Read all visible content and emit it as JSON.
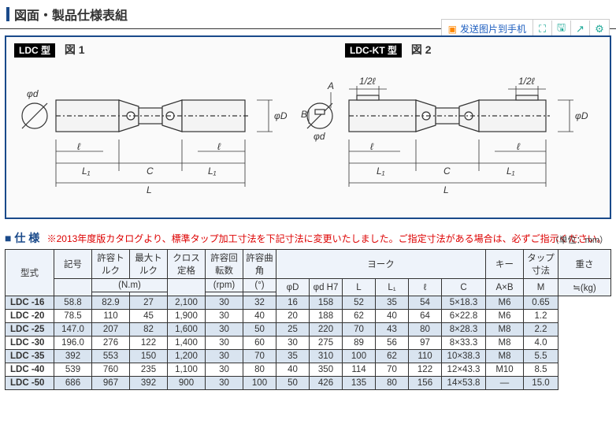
{
  "title": "図面・製品仕様表組",
  "toolbar": {
    "send_label": "发送图片到手机",
    "icons": [
      "expand-icon",
      "save-icon",
      "share-icon",
      "gear-icon"
    ]
  },
  "figure": {
    "left_badge": "LDC 型",
    "left_fig": "図 1",
    "right_badge": "LDC-KT 型",
    "right_fig": "図 2",
    "dims": {
      "phi_d": "φd",
      "phi_D": "φD",
      "L": "L",
      "L1": "L₁",
      "C": "C",
      "l": "ℓ",
      "A": "A",
      "B": "B",
      "half_l": "1/2ℓ"
    }
  },
  "spec": {
    "heading": "■ 仕 様",
    "note": "※2013年度版カタログより、標準タップ加工寸法を下記寸法に変更いたしました。ご指定寸法がある場合は、必ずご指示ください。",
    "unit": "（単位：mm）",
    "columns": {
      "model_head": "型式",
      "symbol": "記号",
      "allow_tq": "許容トルク",
      "max_tq": "最大トルク",
      "cross": "クロス定格",
      "rpm": "許容回転数",
      "angle": "許容曲角",
      "yoke": "ヨーク",
      "key": "キー",
      "tap": "タップ寸法",
      "weight": "重さ",
      "nm": "(N.m)",
      "rpm_u": "(rpm)",
      "deg": "(°)",
      "AxB": "A×B",
      "M": "M",
      "kg": "≒(kg)",
      "yoke_sub": [
        "φD",
        "φd H7",
        "L",
        "L₁",
        "ℓ",
        "C"
      ]
    },
    "rows": [
      {
        "model": "LDC -16",
        "tq": "58.8",
        "tqmax": "82.9",
        "cross": "27",
        "rpm": "2,100",
        "ang": "30",
        "y": [
          "32",
          "16",
          "158",
          "52",
          "35",
          "54"
        ],
        "k": "5×18.3",
        "m": "M6",
        "kg": "0.65"
      },
      {
        "model": "LDC -20",
        "tq": "78.5",
        "tqmax": "110",
        "cross": "45",
        "rpm": "1,900",
        "ang": "30",
        "y": [
          "40",
          "20",
          "188",
          "62",
          "40",
          "64"
        ],
        "k": "6×22.8",
        "m": "M6",
        "kg": "1.2"
      },
      {
        "model": "LDC -25",
        "tq": "147.0",
        "tqmax": "207",
        "cross": "82",
        "rpm": "1,600",
        "ang": "30",
        "y": [
          "50",
          "25",
          "220",
          "70",
          "43",
          "80"
        ],
        "k": "8×28.3",
        "m": "M8",
        "kg": "2.2"
      },
      {
        "model": "LDC -30",
        "tq": "196.0",
        "tqmax": "276",
        "cross": "122",
        "rpm": "1,400",
        "ang": "30",
        "y": [
          "60",
          "30",
          "275",
          "89",
          "56",
          "97"
        ],
        "k": "8×33.3",
        "m": "M8",
        "kg": "4.0"
      },
      {
        "model": "LDC -35",
        "tq": "392",
        "tqmax": "553",
        "cross": "150",
        "rpm": "1,200",
        "ang": "30",
        "y": [
          "70",
          "35",
          "310",
          "100",
          "62",
          "110"
        ],
        "k": "10×38.3",
        "m": "M8",
        "kg": "5.5"
      },
      {
        "model": "LDC -40",
        "tq": "539",
        "tqmax": "760",
        "cross": "235",
        "rpm": "1,100",
        "ang": "30",
        "y": [
          "80",
          "40",
          "350",
          "114",
          "70",
          "122"
        ],
        "k": "12×43.3",
        "m": "M10",
        "kg": "8.5"
      },
      {
        "model": "LDC -50",
        "tq": "686",
        "tqmax": "967",
        "cross": "392",
        "rpm": "900",
        "ang": "30",
        "y": [
          "100",
          "50",
          "426",
          "135",
          "80",
          "156"
        ],
        "k": "14×53.8",
        "m": "—",
        "kg": "15.0"
      }
    ]
  }
}
